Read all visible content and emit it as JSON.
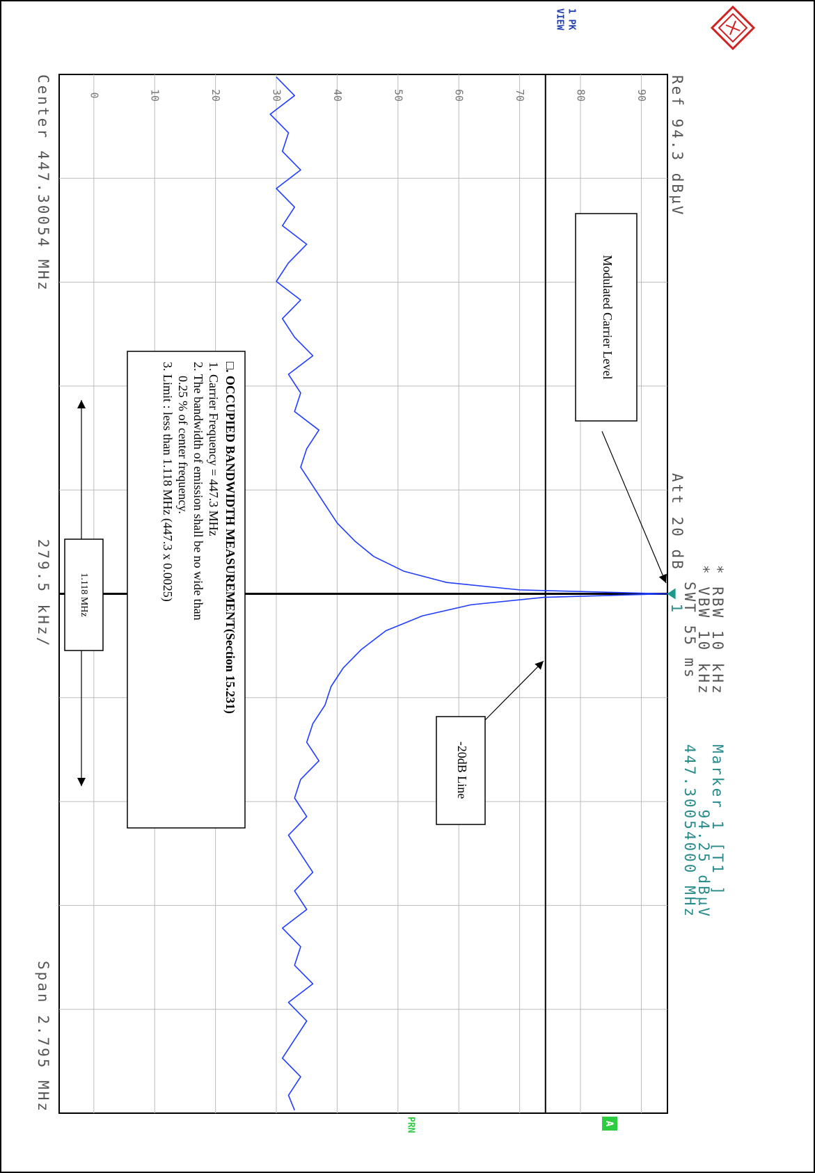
{
  "chart_data": {
    "type": "line",
    "header": {
      "trace_det": "1 PK",
      "trace_view": "VIEW",
      "rbw": "* RBW 10 kHz",
      "vbw": "* VBW 10 kHz",
      "swt": "SWT 55 ms",
      "marker_title": "Marker 1 [T1 ]",
      "marker_level": "94.25 dBµV",
      "marker_freq": "447.30054000 MHz",
      "ref": "Ref 94.3 dBµV",
      "att": "Att 20 dB",
      "status_a": "A",
      "status_prn": "PRN"
    },
    "footer": {
      "center": "Center 447.30054 MHz",
      "div": "279.5 kHz/",
      "span": "Span 2.795 MHz"
    },
    "xlim": [
      445.90304,
      448.69804
    ],
    "ylim": [
      -5.7,
      94.3
    ],
    "yticks": [
      0,
      10,
      20,
      30,
      40,
      50,
      60,
      70,
      80,
      90
    ],
    "grid": true,
    "color": "#1f3cff",
    "center_line": 447.30054,
    "limit_line": 74.25,
    "marker": {
      "label": "1",
      "x": 447.30054,
      "y": 94.25
    },
    "x": [
      445.91,
      445.96,
      446.01,
      446.06,
      446.11,
      446.16,
      446.21,
      446.26,
      446.31,
      446.36,
      446.41,
      446.46,
      446.51,
      446.56,
      446.61,
      446.66,
      446.71,
      446.76,
      446.81,
      446.86,
      446.91,
      446.96,
      447.01,
      447.06,
      447.11,
      447.16,
      447.2,
      447.24,
      447.27,
      447.29,
      447.30054,
      447.31,
      447.33,
      447.36,
      447.4,
      447.45,
      447.5,
      447.55,
      447.6,
      447.65,
      447.7,
      447.75,
      447.8,
      447.85,
      447.9,
      447.95,
      448.0,
      448.05,
      448.1,
      448.15,
      448.2,
      448.25,
      448.3,
      448.35,
      448.4,
      448.45,
      448.5,
      448.55,
      448.6,
      448.65,
      448.69
    ],
    "values": [
      30,
      33,
      29,
      32,
      31,
      34,
      30,
      33,
      31,
      35,
      32,
      30,
      34,
      31,
      33,
      36,
      32,
      34,
      33,
      37,
      35,
      34,
      36,
      38,
      40,
      43,
      46,
      51,
      58,
      70,
      94.25,
      74,
      62,
      54,
      48,
      44,
      41,
      39,
      38,
      36,
      35,
      37,
      34,
      33,
      35,
      32,
      34,
      36,
      33,
      35,
      31,
      34,
      33,
      36,
      32,
      35,
      33,
      31,
      34,
      32,
      33
    ],
    "annotations": {
      "carrier": "Modulated Carrier Level",
      "line20": "-20dB Line",
      "bw": "1.118 MHz",
      "box": [
        "□. OCCUPIED BANDWIDTH MEASUREMENT(Section 15.231)",
        "1. Carrier Frequency = 447.3 MHz",
        "2. The bandwidth of emission shall be no wide than",
        "0.25 % of center frequency.",
        "3. Limit : less than 1.118 MHz (447.3 x 0.0025)"
      ]
    }
  }
}
